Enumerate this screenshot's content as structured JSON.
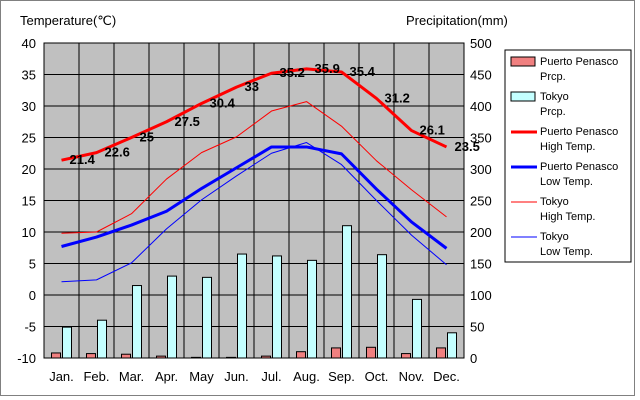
{
  "chart_data": {
    "type": "bar+line",
    "left_axis_title": "Temperature(℃)",
    "right_axis_title": "Precipitation(mm)",
    "categories": [
      "Jan.",
      "Feb.",
      "Mar.",
      "Apr.",
      "May",
      "Jun.",
      "Jul.",
      "Aug.",
      "Sep.",
      "Oct.",
      "Nov.",
      "Dec."
    ],
    "left_axis": {
      "min": -10,
      "max": 40,
      "step": 5
    },
    "right_axis": {
      "min": 0,
      "max": 500,
      "step": 50
    },
    "grid": true,
    "legend_position": "right",
    "precipitation_series": [
      {
        "name": "Puerto Penasco\nPrcp.",
        "color": "#f08080",
        "values": [
          8,
          7,
          6,
          3,
          1,
          1,
          3,
          10,
          16,
          17,
          7,
          16
        ]
      },
      {
        "name": "Tokyo\nPrcp.",
        "color": "#c4ffff",
        "values": [
          49,
          60,
          115,
          130,
          128,
          165,
          162,
          155,
          210,
          164,
          93,
          40
        ]
      }
    ],
    "temperature_series": [
      {
        "name": "Puerto Penasco\nHigh Temp.",
        "color": "#ff0000",
        "width": 3,
        "values": [
          21.4,
          22.6,
          25,
          27.5,
          30.4,
          33,
          35.2,
          35.9,
          35.4,
          31.2,
          26.1,
          23.5
        ],
        "value_labels": [
          "21.4",
          "22.6",
          "25",
          "27.5",
          "30.4",
          "33",
          "35.2",
          "35.9",
          "35.4",
          "31.2",
          "26.1",
          "23.5"
        ]
      },
      {
        "name": "Puerto Penasco\nLow Temp.",
        "color": "#0000ff",
        "width": 3,
        "values": [
          7.7,
          9.2,
          11.1,
          13.3,
          16.9,
          20.2,
          23.5,
          23.5,
          22.4,
          16.8,
          11.6,
          7.4
        ]
      },
      {
        "name": "Tokyo\nHigh Temp.",
        "color": "#ff0000",
        "width": 1,
        "values": [
          9.8,
          10,
          12.9,
          18.4,
          22.6,
          25.1,
          29.2,
          30.7,
          26.8,
          21.3,
          16.7,
          12.4
        ]
      },
      {
        "name": "Tokyo\nLow Temp.",
        "color": "#0000ff",
        "width": 1,
        "values": [
          2.1,
          2.4,
          5.1,
          10.5,
          15.1,
          18.9,
          22.5,
          24.2,
          20.7,
          15.0,
          9.5,
          4.8
        ]
      }
    ]
  }
}
